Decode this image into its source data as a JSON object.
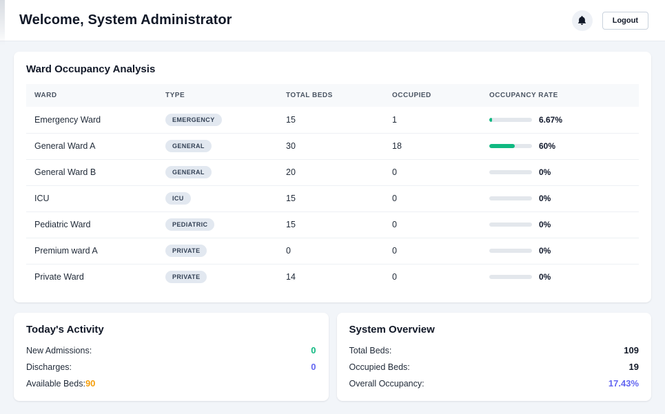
{
  "header": {
    "title": "Welcome, System Administrator",
    "logout_label": "Logout"
  },
  "colors": {
    "progress_fill": "#10b981",
    "progress_track": "#e3e7ec",
    "badge_bg": "#e2e8f0",
    "badge_text": "#334155",
    "value_green": "#10b981",
    "value_indigo": "#6366f1",
    "value_orange": "#f59e0b",
    "value_dark": "#111827"
  },
  "ward_table": {
    "title": "Ward Occupancy Analysis",
    "columns": [
      "Ward",
      "Type",
      "Total Beds",
      "Occupied",
      "Occupancy Rate"
    ],
    "rows": [
      {
        "ward": "Emergency Ward",
        "type": "EMERGENCY",
        "total_beds": "15",
        "occupied": "1",
        "rate_percent": 6.67,
        "rate_label": "6.67%"
      },
      {
        "ward": "General Ward A",
        "type": "GENERAL",
        "total_beds": "30",
        "occupied": "18",
        "rate_percent": 60,
        "rate_label": "60%"
      },
      {
        "ward": "General Ward B",
        "type": "GENERAL",
        "total_beds": "20",
        "occupied": "0",
        "rate_percent": 0,
        "rate_label": "0%"
      },
      {
        "ward": "ICU",
        "type": "ICU",
        "total_beds": "15",
        "occupied": "0",
        "rate_percent": 0,
        "rate_label": "0%"
      },
      {
        "ward": "Pediatric Ward",
        "type": "PEDIATRIC",
        "total_beds": "15",
        "occupied": "0",
        "rate_percent": 0,
        "rate_label": "0%"
      },
      {
        "ward": "Premium ward A",
        "type": "PRIVATE",
        "total_beds": "0",
        "occupied": "0",
        "rate_percent": 0,
        "rate_label": "0%"
      },
      {
        "ward": "Private Ward",
        "type": "PRIVATE",
        "total_beds": "14",
        "occupied": "0",
        "rate_percent": 0,
        "rate_label": "0%"
      }
    ]
  },
  "todays_activity": {
    "title": "Today's Activity",
    "items": [
      {
        "label": "New Admissions:",
        "value": "0",
        "color": "#10b981",
        "align": "right"
      },
      {
        "label": "Discharges:",
        "value": "0",
        "color": "#6366f1",
        "align": "right"
      },
      {
        "label": "Available Beds:",
        "value": "90",
        "color": "#f59e0b",
        "align": "inline"
      }
    ]
  },
  "system_overview": {
    "title": "System Overview",
    "items": [
      {
        "label": "Total Beds:",
        "value": "109",
        "color": "#111827",
        "align": "right"
      },
      {
        "label": "Occupied Beds:",
        "value": "19",
        "color": "#111827",
        "align": "right"
      },
      {
        "label": "Overall Occupancy:",
        "value": "17.43%",
        "color": "#6366f1",
        "align": "right"
      }
    ]
  }
}
